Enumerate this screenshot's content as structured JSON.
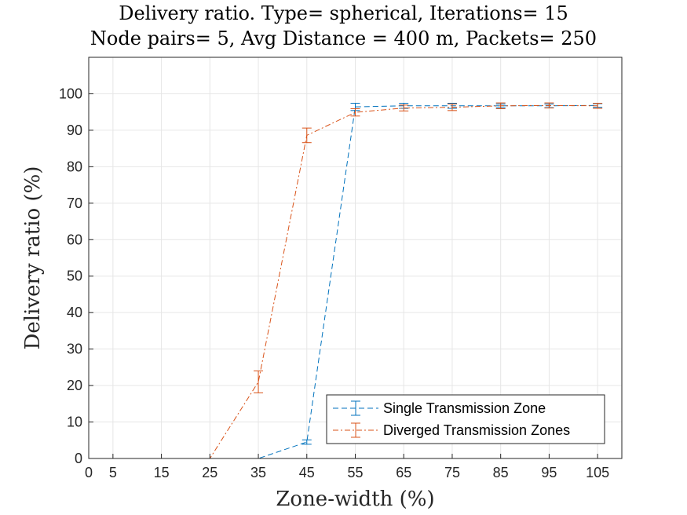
{
  "chart_data": {
    "type": "line",
    "title": [
      "Delivery ratio. Type= spherical, Iterations= 15",
      "Node pairs= 5, Avg Distance = 400 m, Packets= 250"
    ],
    "xlabel": "Zone-width (%)",
    "ylabel": "Delivery ratio (%)",
    "xlim": [
      0,
      110
    ],
    "ylim": [
      0,
      110
    ],
    "xticks": [
      0,
      5,
      15,
      25,
      35,
      45,
      55,
      65,
      75,
      85,
      95,
      105
    ],
    "yticks": [
      0,
      10,
      20,
      30,
      40,
      50,
      60,
      70,
      80,
      90,
      100
    ],
    "grid": true,
    "legend_position": "bottom-right",
    "x": [
      5,
      15,
      25,
      35,
      45,
      55,
      65,
      75,
      85,
      95,
      105
    ],
    "series": [
      {
        "name": "Single Transmission Zone",
        "color": "#0072BD",
        "dash": "dashed",
        "values": [
          0,
          0,
          0,
          0,
          4.5,
          96.4,
          96.7,
          96.7,
          96.7,
          96.7,
          96.8
        ],
        "errors": [
          0,
          0,
          0,
          0,
          0.6,
          1.0,
          0.7,
          0.7,
          0.5,
          0.5,
          0.5
        ]
      },
      {
        "name": "Diverged Transmission Zones",
        "color": "#D95319",
        "dash": "dashdot",
        "values": [
          0,
          0,
          0,
          21.0,
          88.6,
          94.9,
          96.1,
          96.3,
          96.7,
          96.8,
          96.7
        ],
        "errors": [
          0,
          0,
          0,
          3.0,
          2.0,
          1.0,
          0.8,
          0.9,
          0.8,
          0.7,
          0.7
        ]
      }
    ]
  }
}
